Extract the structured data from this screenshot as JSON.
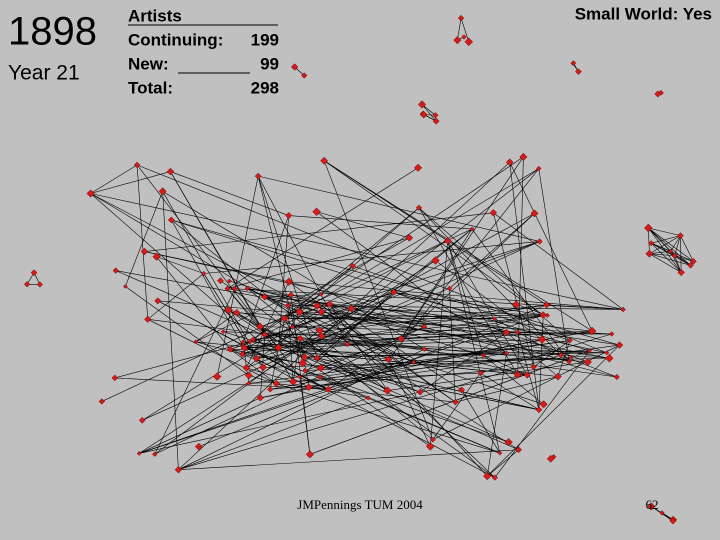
{
  "year": "1898",
  "year_label": "Year 21",
  "stats": {
    "heading": "Artists",
    "rows": [
      {
        "label": "Continuing:",
        "value": 199
      },
      {
        "label": "New:",
        "value": 99
      },
      {
        "label": "Total:",
        "value": 298
      }
    ]
  },
  "small_world": "Small World: Yes",
  "footer": "JMPennings TUM 2004",
  "page_number": "62"
}
